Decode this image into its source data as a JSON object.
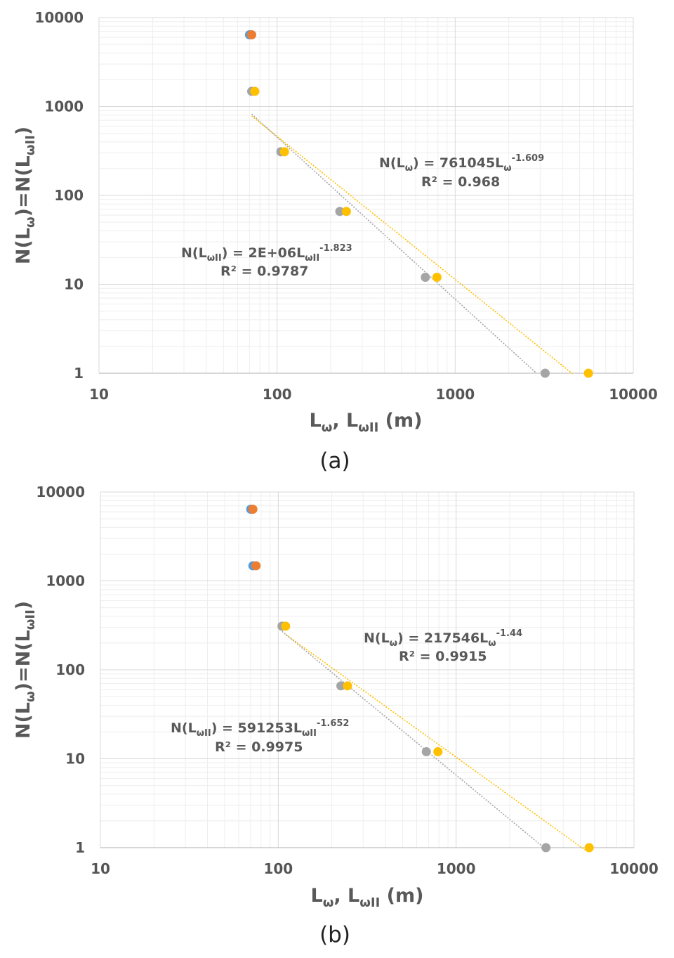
{
  "chart_data": [
    {
      "type": "scatter",
      "panel_label": "(a)",
      "xscale": "log",
      "yscale": "log",
      "xlim": [
        10,
        10000
      ],
      "ylim": [
        1,
        10000
      ],
      "xticks": [
        "10",
        "100",
        "1000",
        "10000"
      ],
      "yticks": [
        "1",
        "10",
        "100",
        "1000",
        "10000"
      ],
      "xlabel": {
        "main1": "L",
        "sub1": "ω",
        "sep": ", L",
        "sub2": "ωII",
        "tail": " (m)"
      },
      "ylabel": {
        "a": "N(L",
        "sub1": "ω",
        "b": ")=N(L",
        "sub2": "ωII",
        "c": ")"
      },
      "series": [
        {
          "color": "#5B9BD5",
          "x": [
            70
          ],
          "y": [
            6400
          ]
        },
        {
          "color": "#ED7D31",
          "x": [
            72
          ],
          "y": [
            6400
          ]
        },
        {
          "color": "#A5A5A5",
          "x": [
            72,
            105,
            225,
            680,
            3200
          ],
          "y": [
            1480,
            310,
            66,
            12,
            1
          ]
        },
        {
          "color": "#FFC000",
          "x": [
            75,
            110,
            245,
            790,
            5600
          ],
          "y": [
            1480,
            310,
            66,
            12,
            1
          ]
        }
      ],
      "trendlines": [
        {
          "color": "#FFC000",
          "coef": 761045,
          "exp": -1.609,
          "x_range": [
            72,
            4600
          ]
        },
        {
          "color": "#A5A5A5",
          "coef": 2000000,
          "exp": -1.823,
          "x_range": [
            72,
            2850
          ]
        }
      ],
      "annotations": [
        {
          "eq_left": "N(L",
          "eq_sub": "ω",
          "eq_mid": ") = 761045L",
          "eq_sub2": "ω",
          "eq_sup": "-1.609",
          "r2": "R² = 0.968"
        },
        {
          "eq_left": "N(L",
          "eq_sub": "ωII",
          "eq_mid": ") = 2E+06L",
          "eq_sub2": "ωII",
          "eq_sup": "-1.823",
          "r2": "R² = 0.9787"
        }
      ],
      "grid": true
    },
    {
      "type": "scatter",
      "panel_label": "(b)",
      "xscale": "log",
      "yscale": "log",
      "xlim": [
        10,
        10000
      ],
      "ylim": [
        1,
        10000
      ],
      "xticks": [
        "10",
        "100",
        "1000",
        "10000"
      ],
      "yticks": [
        "1",
        "10",
        "100",
        "1000",
        "10000"
      ],
      "xlabel": {
        "main1": "L",
        "sub1": "ω",
        "sep": ", L",
        "sub2": "ωII",
        "tail": " (m)"
      },
      "ylabel": {
        "a": "N(L",
        "sub1": "ω",
        "b": ")=N(L",
        "sub2": "ωII",
        "c": ")"
      },
      "series": [
        {
          "color": "#5B9BD5",
          "x": [
            70,
            72
          ],
          "y": [
            6400,
            1480
          ]
        },
        {
          "color": "#ED7D31",
          "x": [
            72,
            75
          ],
          "y": [
            6400,
            1480
          ]
        },
        {
          "color": "#A5A5A5",
          "x": [
            105,
            225,
            680,
            3200
          ],
          "y": [
            310,
            66,
            12,
            1
          ]
        },
        {
          "color": "#FFC000",
          "x": [
            110,
            245,
            790,
            5600
          ],
          "y": [
            310,
            66,
            12,
            1
          ]
        }
      ],
      "trendlines": [
        {
          "color": "#FFC000",
          "coef": 217546,
          "exp": -1.44,
          "x_range": [
            110,
            5300
          ]
        },
        {
          "color": "#A5A5A5",
          "coef": 591253,
          "exp": -1.652,
          "x_range": [
            105,
            3050
          ]
        }
      ],
      "annotations": [
        {
          "eq_left": "N(L",
          "eq_sub": "ω",
          "eq_mid": ") = 217546L",
          "eq_sub2": "ω",
          "eq_sup": "-1.44",
          "r2": "R² = 0.9915"
        },
        {
          "eq_left": "N(L",
          "eq_sub": "ωII",
          "eq_mid": ") = 591253L",
          "eq_sub2": "ωII",
          "eq_sup": "-1.652",
          "r2": "R² = 0.9975"
        }
      ],
      "grid": true
    }
  ]
}
